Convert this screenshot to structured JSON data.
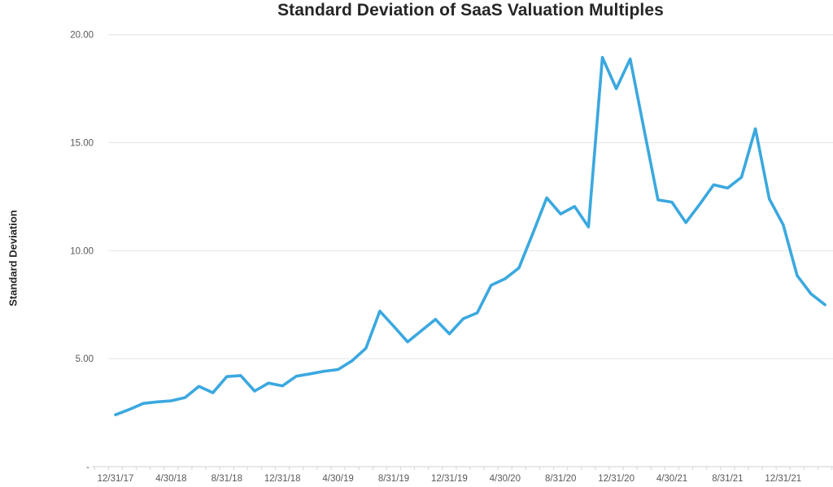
{
  "page": {
    "title": "Standard Deviation of SaaS Valuation Multiples"
  },
  "chart_data": {
    "type": "line",
    "title": "Standard Deviation of SaaS Valuation Multiples",
    "xlabel": "",
    "ylabel": "Standard Deviation",
    "ylim": [
      0,
      20
    ],
    "grid": true,
    "legend": false,
    "y_ticks": {
      "labels": [
        "20.00",
        "15.00",
        "10.00",
        "5.00",
        "-"
      ],
      "values": [
        20,
        15,
        10,
        5,
        0
      ]
    },
    "x_tick_labels": [
      "12/31/17",
      "4/30/18",
      "8/31/18",
      "12/31/18",
      "4/30/19",
      "8/31/19",
      "12/31/19",
      "4/30/20",
      "8/31/20",
      "12/31/20",
      "4/30/21",
      "8/31/21",
      "12/31/21"
    ],
    "x_tick_every": 4,
    "x": [
      "12/31/17",
      "1/31/18",
      "2/28/18",
      "3/31/18",
      "4/30/18",
      "5/31/18",
      "6/30/18",
      "7/31/18",
      "8/31/18",
      "9/30/18",
      "10/31/18",
      "11/30/18",
      "12/31/18",
      "1/31/19",
      "2/28/19",
      "3/31/19",
      "4/30/19",
      "5/31/19",
      "6/30/19",
      "7/31/19",
      "8/31/19",
      "9/30/19",
      "10/31/19",
      "11/30/19",
      "12/31/19",
      "1/31/20",
      "2/29/20",
      "3/31/20",
      "4/30/20",
      "5/31/20",
      "6/30/20",
      "7/31/20",
      "8/31/20",
      "9/30/20",
      "10/31/20",
      "11/30/20",
      "12/31/20",
      "1/31/21",
      "2/28/21",
      "3/31/21",
      "4/30/21",
      "5/31/21",
      "6/30/21",
      "7/31/21",
      "8/31/21",
      "9/30/21",
      "10/31/21",
      "11/30/21",
      "12/31/21",
      "1/31/22",
      "2/28/22",
      "3/31/22"
    ],
    "series": [
      {
        "name": "Standard Deviation",
        "values": [
          2.4,
          2.65,
          2.93,
          3.0,
          3.05,
          3.2,
          3.72,
          3.42,
          4.17,
          4.22,
          3.5,
          3.87,
          3.74,
          4.19,
          4.3,
          4.42,
          4.5,
          4.9,
          5.48,
          7.2,
          6.5,
          5.78,
          6.3,
          6.82,
          6.15,
          6.85,
          7.12,
          8.4,
          8.7,
          9.2,
          10.8,
          12.45,
          11.7,
          12.05,
          11.1,
          18.95,
          17.5,
          18.88,
          15.6,
          12.35,
          12.25,
          11.3,
          12.15,
          13.05,
          12.9,
          13.4,
          15.65,
          12.4,
          11.2,
          8.85,
          8.0,
          7.5
        ]
      }
    ]
  },
  "colors": {
    "line": "#3BA8DF",
    "gridline": "#E9E9E9",
    "axis": "#D9D9D9",
    "tick_text": "#595959",
    "title_text": "#262626",
    "background": "#FFFFFF"
  }
}
